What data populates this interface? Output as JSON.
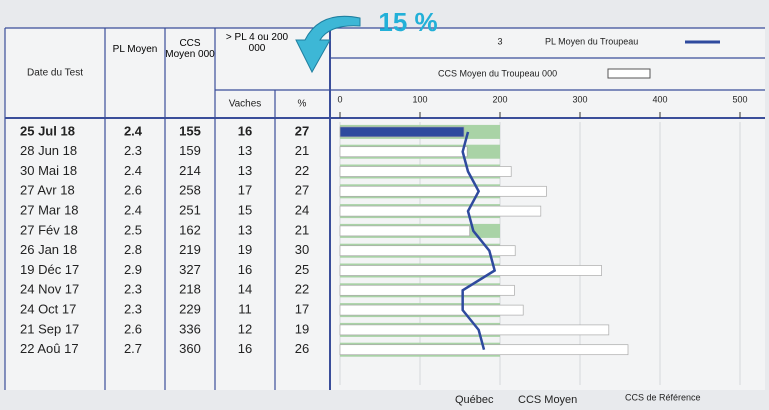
{
  "callout": "15 %",
  "table": {
    "headers": [
      "Date du Test",
      "PL Moyen",
      "CCS Moyen 000",
      "> PL 4 ou 200 000",
      "Vaches",
      "%"
    ],
    "rows": [
      [
        "25 Jul 18",
        2.4,
        155,
        16,
        27
      ],
      [
        "28 Jun 18",
        2.3,
        159,
        13,
        21
      ],
      [
        "30 Mai 18",
        2.4,
        214,
        13,
        22
      ],
      [
        "27 Avr 18",
        2.6,
        258,
        17,
        27
      ],
      [
        "27 Mar 18",
        2.4,
        251,
        15,
        24
      ],
      [
        "27 Fév 18",
        2.5,
        162,
        13,
        21
      ],
      [
        "26 Jan 18",
        2.8,
        219,
        19,
        30
      ],
      [
        "19 Déc 17",
        2.9,
        327,
        16,
        25
      ],
      [
        "24 Nov 17",
        2.3,
        218,
        14,
        22
      ],
      [
        "24 Oct 17",
        2.3,
        229,
        11,
        17
      ],
      [
        "21 Sep 17",
        2.6,
        336,
        12,
        19
      ],
      [
        "22 Aoû 17",
        2.7,
        360,
        16,
        26
      ]
    ]
  },
  "chart_data": {
    "type": "bar",
    "legend_pl": "PL Moyen du Troupeau",
    "legend_ccs": "CCS Moyen du Troupeau 000",
    "xlim": [
      0,
      500
    ],
    "xticks": [
      0,
      100,
      200,
      300,
      400,
      500
    ],
    "x2lim": [
      0,
      3
    ],
    "x2ticks": [
      3
    ],
    "pl_color": "#2e4a9e",
    "ccs_colors": [
      "#2e4a9e",
      "#ffffff",
      "#ffffff",
      "#ffffff",
      "#ffffff",
      "#ffffff",
      "#ffffff",
      "#ffffff",
      "#ffffff",
      "#ffffff",
      "#ffffff",
      "#ffffff"
    ],
    "quebec": {
      "color": "#a9d3a6",
      "values": [
        200,
        200,
        200,
        200,
        200,
        200,
        200,
        200,
        200,
        200,
        200,
        200
      ]
    },
    "footer": [
      "Québec",
      "CCS Moyen",
      "CCS de Référence"
    ],
    "grid": true
  }
}
